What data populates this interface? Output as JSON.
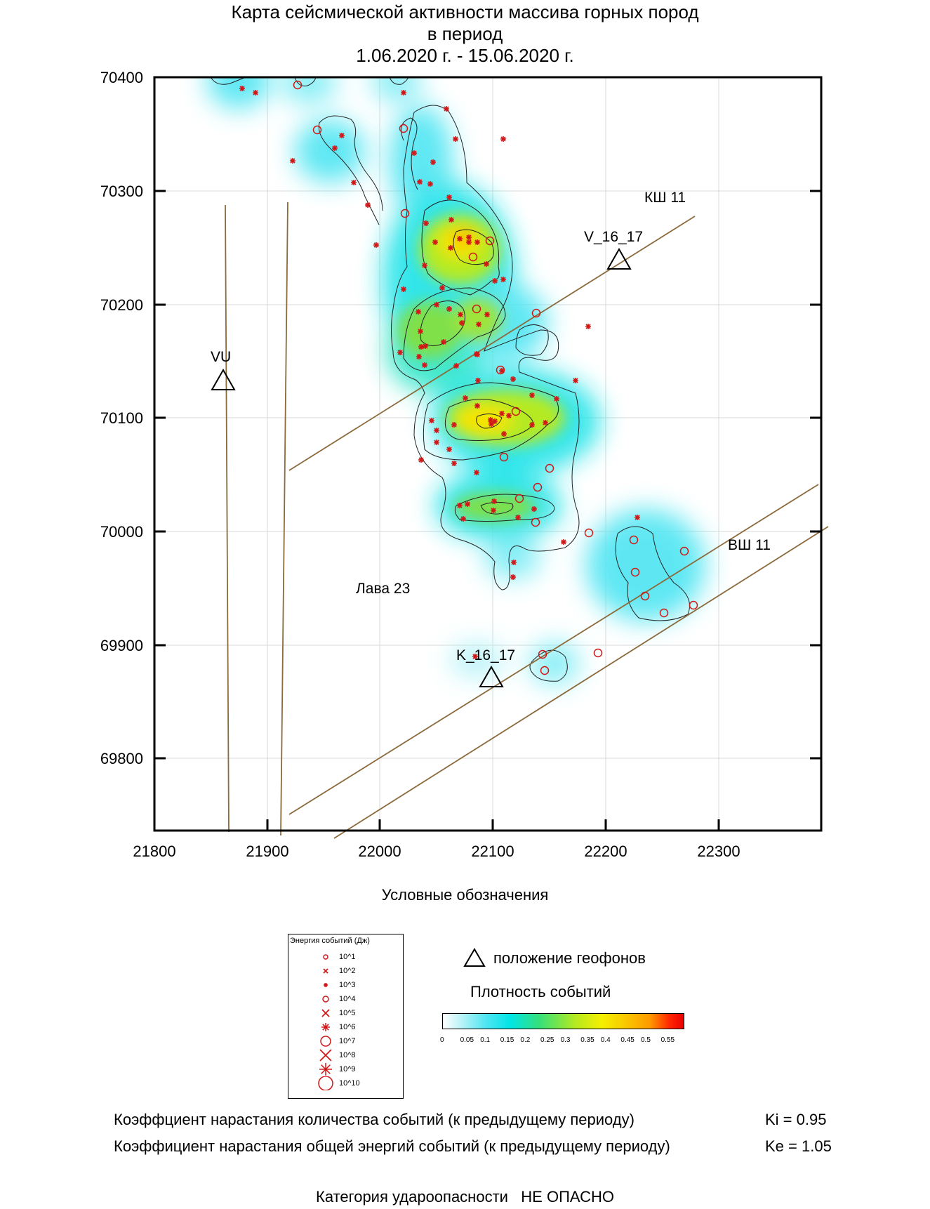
{
  "title": {
    "line1": "Карта сейсмической активности массива горных пород",
    "line2": "в период",
    "line3": "1.06.2020 г. - 15.06.2020 г."
  },
  "map": {
    "x_ticks": [
      "21800",
      "21900",
      "22000",
      "22100",
      "22200",
      "22300"
    ],
    "y_ticks": [
      "70400",
      "70300",
      "70200",
      "70100",
      "70000",
      "69900",
      "69800"
    ],
    "labels": {
      "ksh11": "КШ 11",
      "vsh11": "ВШ 11",
      "lava23": "Лава 23",
      "vu": "VU",
      "v16": "V_16_17",
      "k16": "K_16_17"
    }
  },
  "legend": {
    "heading": "Условные обозначения",
    "energy_title": "Энергия событий (Дж)",
    "energy_levels": [
      "10^1",
      "10^2",
      "10^3",
      "10^4",
      "10^5",
      "10^6",
      "10^7",
      "10^8",
      "10^9",
      "10^10"
    ],
    "geophones": "положение геофонов",
    "density_title": "Плотность событий",
    "density_ticks": [
      "0",
      "0.05",
      "0.1",
      "0.15",
      "0.2",
      "0.25",
      "0.3",
      "0.35",
      "0.4",
      "0.45",
      "0.5",
      "0.55"
    ],
    "event_color": "#d01818"
  },
  "coefficients": {
    "ki_text": "Коэффциент нарастания количества событий (к предыдущему периоду)",
    "ki_value": "Ki = 0.95",
    "ke_text": "Коэффициент нарастания общей энергий событий (к предыдущему периоду)",
    "ke_value": "Ke = 1.05"
  },
  "category": {
    "label": "Категория удароопасности",
    "value": "НЕ ОПАСНО"
  }
}
